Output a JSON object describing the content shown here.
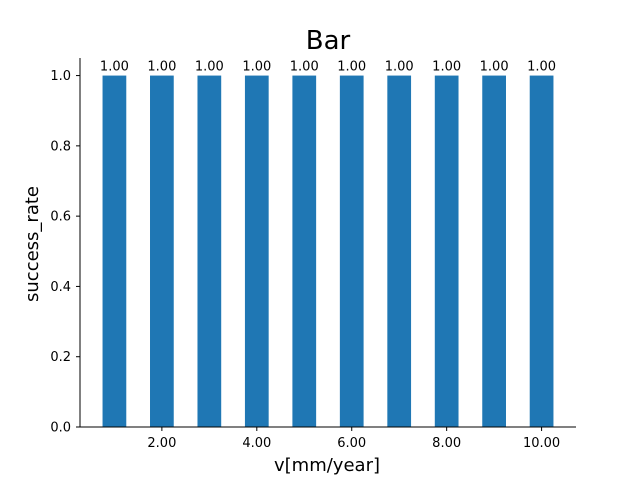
{
  "chart_data": {
    "type": "bar",
    "title": "Bar",
    "xlabel": "v[mm/year]",
    "ylabel": "success_rate",
    "x": [
      1,
      2,
      3,
      4,
      5,
      6,
      7,
      8,
      9,
      10
    ],
    "values": [
      1.0,
      1.0,
      1.0,
      1.0,
      1.0,
      1.0,
      1.0,
      1.0,
      1.0,
      1.0
    ],
    "value_labels": [
      "1.00",
      "1.00",
      "1.00",
      "1.00",
      "1.00",
      "1.00",
      "1.00",
      "1.00",
      "1.00",
      "1.00"
    ],
    "bar_width": 0.5,
    "color": "#1f77b4",
    "xlim": [
      0.275,
      10.725
    ],
    "ylim": [
      0,
      1.05
    ],
    "x_ticks": [
      2,
      4,
      6,
      8,
      10
    ],
    "x_tick_labels": [
      "2.00",
      "4.00",
      "6.00",
      "8.00",
      "10.00"
    ],
    "y_ticks": [
      0,
      0.2,
      0.4,
      0.6,
      0.8,
      1.0
    ],
    "y_tick_labels": [
      "0.0",
      "0.2",
      "0.4",
      "0.6",
      "0.8",
      "1.0"
    ],
    "grid": false,
    "spines": [
      "left",
      "bottom"
    ]
  }
}
